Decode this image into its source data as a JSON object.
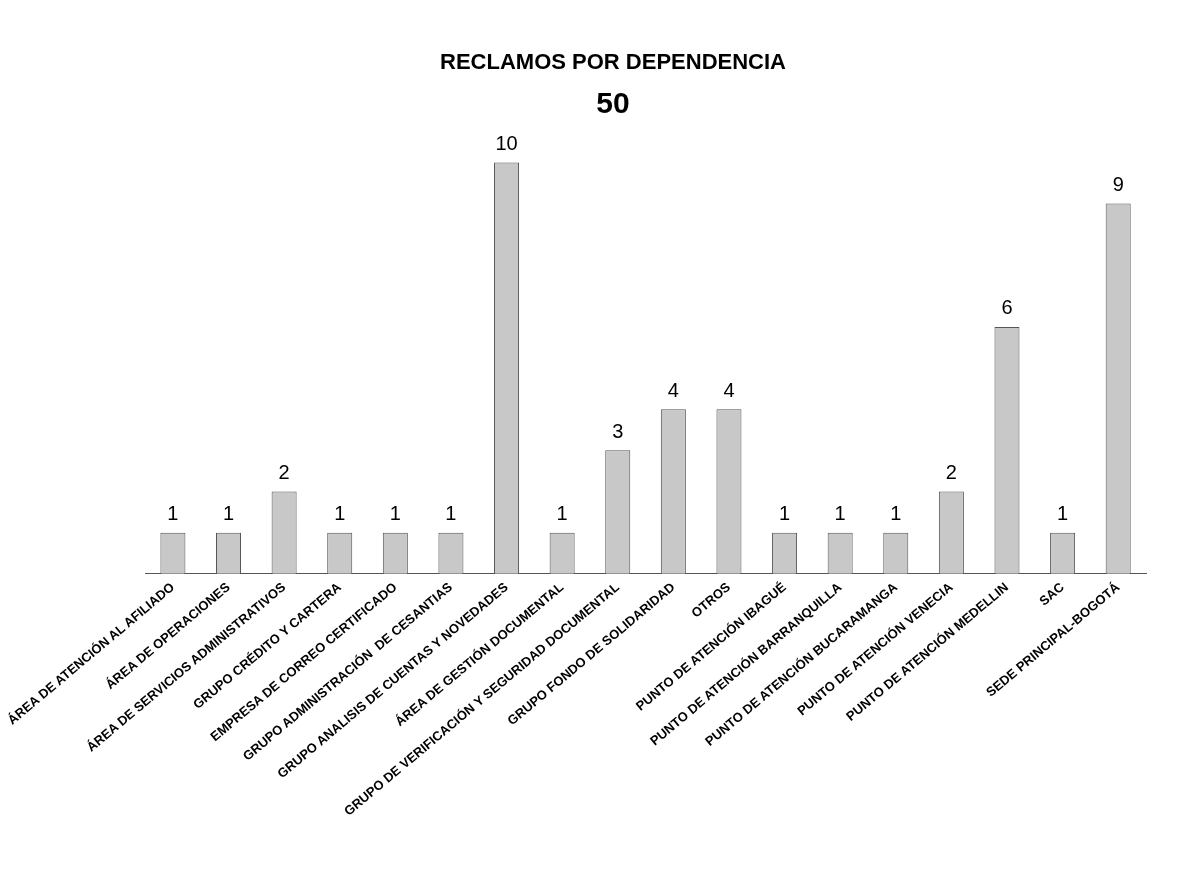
{
  "chart_data": {
    "type": "bar",
    "title": "RECLAMOS POR DEPENDENCIA",
    "subtitle": "50",
    "categories": [
      "ÁREA DE ATENCIÓN AL AFILIADO",
      "ÁREA DE OPERACIONES",
      "ÁREA DE SERVICIOS ADMINISTRATIVOS",
      "GRUPO CRÉDITO Y CARTERA",
      "EMPRESA DE CORREO CERTIFICADO",
      "GRUPO ADMINISTRACIÓN  DE CESANTIAS",
      "GRUPO ANALISIS DE CUENTAS Y NOVEDADES",
      "ÁREA DE GESTIÓN DOCUMENTAL",
      "GRUPO DE VERIFICACIÓN Y SEGURIDAD DOCUMENTAL",
      "GRUPO FONDO DE SOLIDARIDAD",
      "OTROS",
      "PUNTO DE ATENCIÓN IBAGUÉ",
      "PUNTO DE ATENCIÓN BARRANQUILLA",
      "PUNTO DE ATENCIÓN BUCARAMANGA",
      "PUNTO DE ATENCIÓN VENECIA",
      "PUNTO DE ATENCIÓN MEDELLIN",
      "SAC",
      "SEDE PRINCIPAL-BOGOTÁ"
    ],
    "values": [
      1,
      1,
      2,
      1,
      1,
      1,
      10,
      1,
      3,
      4,
      4,
      1,
      1,
      1,
      2,
      6,
      1,
      9
    ],
    "color": "#c8c8c8",
    "data_labels": true,
    "grid": false,
    "legend": false
  }
}
